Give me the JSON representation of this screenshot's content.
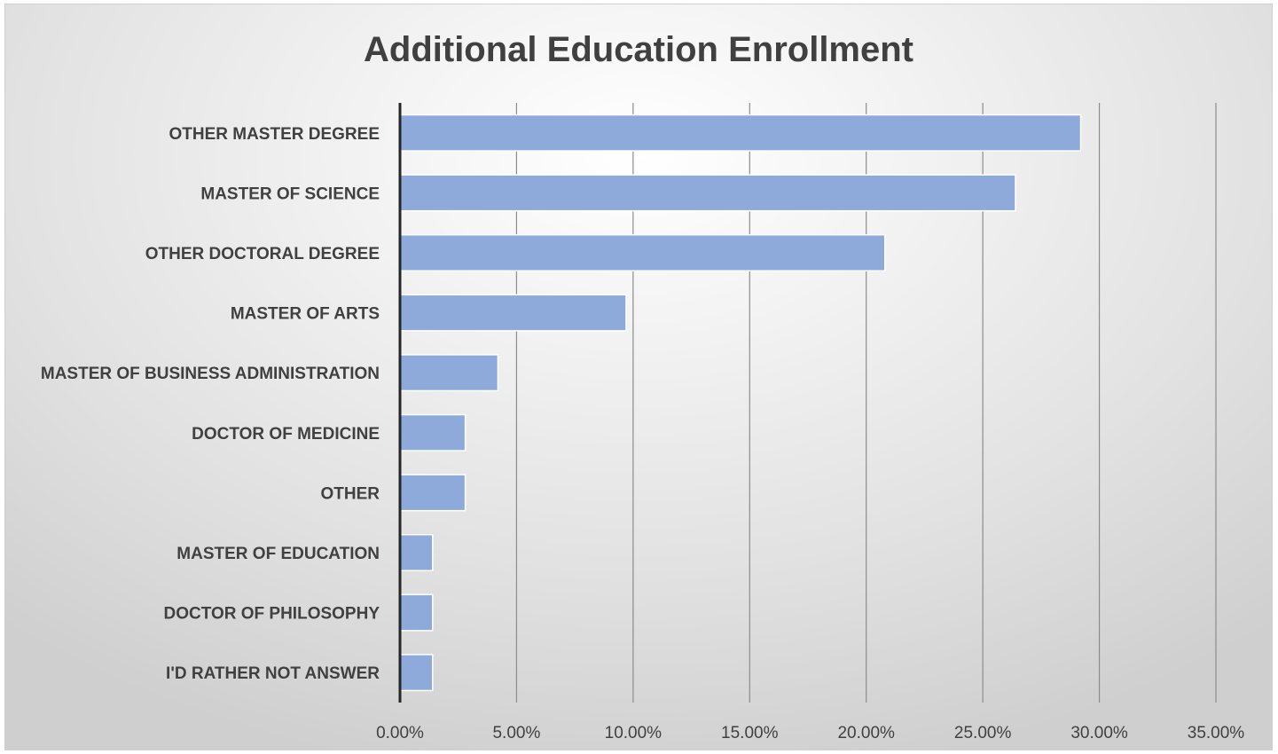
{
  "chart_data": {
    "type": "bar",
    "orientation": "horizontal",
    "title": "Additional Education Enrollment",
    "xlabel": "",
    "ylabel": "",
    "categories": [
      "OTHER MASTER DEGREE",
      "MASTER OF SCIENCE",
      "OTHER DOCTORAL DEGREE",
      "MASTER OF ARTS",
      "MASTER OF BUSINESS ADMINISTRATION",
      "DOCTOR OF MEDICINE",
      "OTHER",
      "MASTER OF EDUCATION",
      "DOCTOR OF PHILOSOPHY",
      "I'D RATHER NOT ANSWER"
    ],
    "values": [
      29.2,
      26.4,
      20.8,
      9.7,
      4.2,
      2.8,
      2.8,
      1.4,
      1.4,
      1.4
    ],
    "xlim": [
      0,
      35
    ],
    "xticks": [
      0,
      5,
      10,
      15,
      20,
      25,
      30,
      35
    ],
    "xtick_labels": [
      "0.00%",
      "5.00%",
      "10.00%",
      "15.00%",
      "20.00%",
      "25.00%",
      "30.00%",
      "35.00%"
    ],
    "value_format": "percent",
    "grid": true,
    "legend": "none",
    "bar_color": "#8eaadb"
  }
}
